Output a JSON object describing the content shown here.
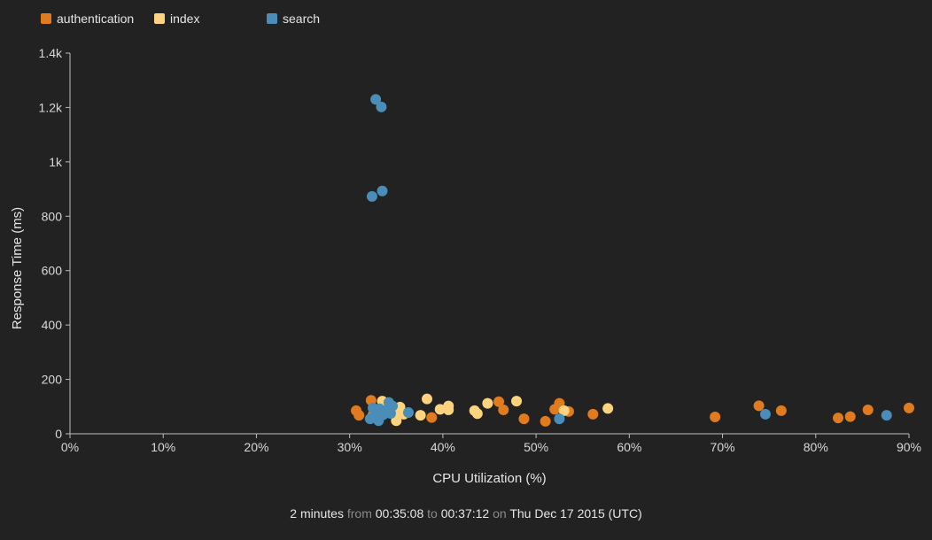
{
  "chart_data": {
    "type": "scatter",
    "xlabel": "CPU Utilization (%)",
    "ylabel": "Response Time (ms)",
    "xlim": [
      0,
      90
    ],
    "ylim": [
      0,
      1400
    ],
    "x_ticks": [
      "0%",
      "10%",
      "20%",
      "30%",
      "40%",
      "50%",
      "60%",
      "70%",
      "80%",
      "90%"
    ],
    "y_ticks": [
      "0",
      "200",
      "400",
      "600",
      "800",
      "1k",
      "1.2k",
      "1.4k"
    ],
    "legend_position": "top-left",
    "series": [
      {
        "name": "authentication",
        "color": "#e07b1f",
        "points": [
          [
            30.7,
            85
          ],
          [
            31.0,
            68
          ],
          [
            32.3,
            123
          ],
          [
            32.5,
            70
          ],
          [
            33.0,
            65
          ],
          [
            33.4,
            78
          ],
          [
            38.8,
            60
          ],
          [
            46.0,
            118
          ],
          [
            46.5,
            88
          ],
          [
            48.7,
            55
          ],
          [
            51.0,
            46
          ],
          [
            52.0,
            90
          ],
          [
            52.5,
            112
          ],
          [
            53.5,
            82
          ],
          [
            56.1,
            72
          ],
          [
            69.2,
            62
          ],
          [
            73.9,
            103
          ],
          [
            76.3,
            85
          ],
          [
            82.4,
            58
          ],
          [
            83.7,
            63
          ],
          [
            85.6,
            88
          ],
          [
            90.0,
            95
          ]
        ]
      },
      {
        "name": "index",
        "color": "#fdd37e",
        "points": [
          [
            33.5,
            120
          ],
          [
            34.0,
            105
          ],
          [
            34.5,
            95
          ],
          [
            34.8,
            75
          ],
          [
            35.0,
            48
          ],
          [
            35.4,
            98
          ],
          [
            35.8,
            72
          ],
          [
            37.6,
            68
          ],
          [
            38.3,
            128
          ],
          [
            39.7,
            90
          ],
          [
            40.6,
            102
          ],
          [
            40.6,
            88
          ],
          [
            43.4,
            85
          ],
          [
            43.7,
            74
          ],
          [
            44.8,
            112
          ],
          [
            47.9,
            120
          ],
          [
            53.0,
            85
          ],
          [
            57.7,
            93
          ]
        ]
      },
      {
        "name": "search",
        "color": "#4a8db9",
        "points": [
          [
            32.8,
            1230
          ],
          [
            33.4,
            1202
          ],
          [
            32.4,
            873
          ],
          [
            33.5,
            893
          ],
          [
            32.5,
            95
          ],
          [
            32.8,
            80
          ],
          [
            33.2,
            92
          ],
          [
            33.6,
            70
          ],
          [
            34.0,
            88
          ],
          [
            34.2,
            115
          ],
          [
            34.4,
            75
          ],
          [
            34.6,
            102
          ],
          [
            32.2,
            55
          ],
          [
            33.1,
            48
          ],
          [
            36.3,
            78
          ],
          [
            52.5,
            55
          ],
          [
            74.6,
            72
          ],
          [
            87.6,
            68
          ]
        ]
      }
    ]
  },
  "footer": {
    "duration": "2 minutes",
    "from_word": "from",
    "start_time": "00:35:08",
    "to_word": "to",
    "end_time": "00:37:12",
    "on_word": "on",
    "date": "Thu Dec 17 2015 (UTC)"
  }
}
